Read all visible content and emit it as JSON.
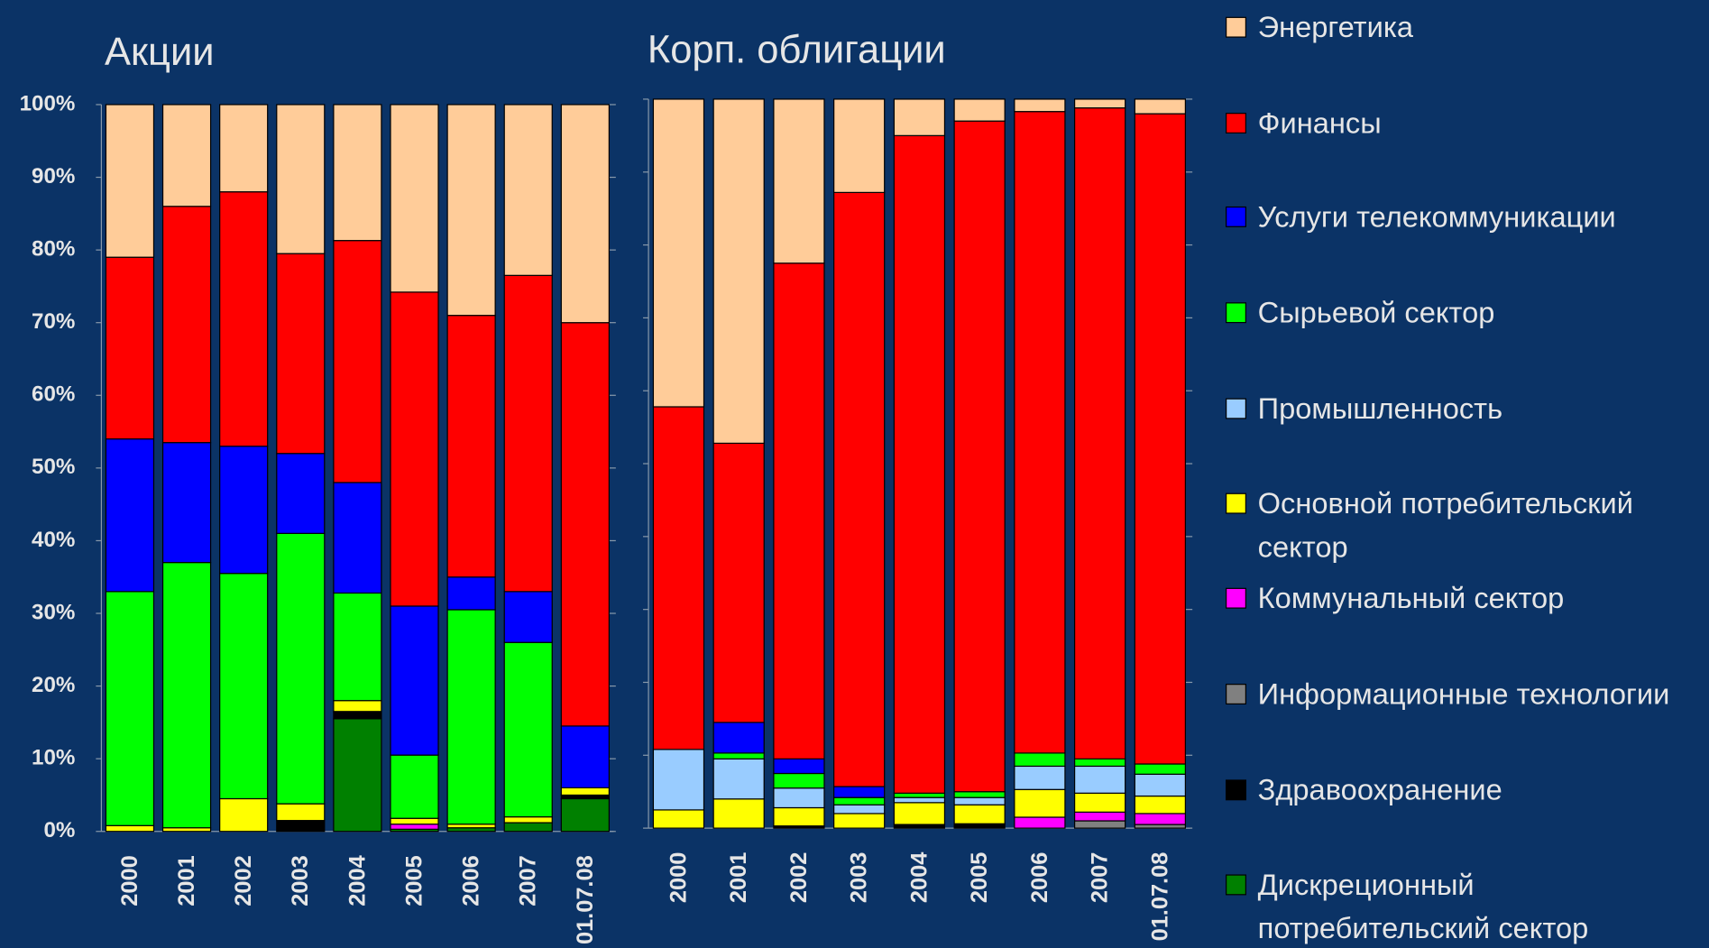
{
  "chart_data": [
    {
      "type": "stacked_bar",
      "title": "Акции",
      "categories": [
        "2000",
        "2001",
        "2002",
        "2003",
        "2004",
        "2005",
        "2006",
        "2007",
        "01.07.08"
      ],
      "ylim": [
        0,
        100
      ],
      "yticks": [
        {
          "value": 0,
          "label": "0%"
        },
        {
          "value": 10,
          "label": "10%"
        },
        {
          "value": 20,
          "label": "20%"
        },
        {
          "value": 30,
          "label": "30%"
        },
        {
          "value": 40,
          "label": "40%"
        },
        {
          "value": 50,
          "label": "50%"
        },
        {
          "value": 60,
          "label": "60%"
        },
        {
          "value": 70,
          "label": "70%"
        },
        {
          "value": 80,
          "label": "80%"
        },
        {
          "value": 90,
          "label": "90%"
        },
        {
          "value": 100,
          "label": "100%"
        }
      ],
      "series": [
        {
          "name": "Энергетика",
          "color": "#ffcc99",
          "values": [
            21,
            14,
            12,
            20.5,
            18.7,
            25.8,
            29,
            23.5,
            30
          ]
        },
        {
          "name": "Финансы",
          "color": "#ff0000",
          "values": [
            25,
            32.5,
            35,
            27.5,
            33.3,
            43.2,
            36,
            43.5,
            55.5
          ]
        },
        {
          "name": "Услуги телекоммуникации",
          "color": "#0000ff",
          "values": [
            21,
            16.5,
            17.5,
            11,
            15.2,
            20.5,
            4.5,
            7,
            8.5
          ]
        },
        {
          "name": "Сырьевой сектор",
          "color": "#00ff00",
          "values": [
            32.2,
            36.5,
            31,
            37.2,
            14.8,
            8.7,
            29.5,
            24,
            0
          ]
        },
        {
          "name": "Промышленность",
          "color": "#99ccff",
          "values": [
            0,
            0,
            0,
            0,
            0,
            0,
            0,
            0,
            0
          ]
        },
        {
          "name": "Основной потребительский сектор",
          "color": "#ffff00",
          "values": [
            0.8,
            0.5,
            4.5,
            2.3,
            1.5,
            0.8,
            0.5,
            0.8,
            1
          ]
        },
        {
          "name": "Коммунальный сектор",
          "color": "#ff00ff",
          "values": [
            0,
            0,
            0,
            0,
            0,
            0.7,
            0,
            0,
            0
          ]
        },
        {
          "name": "Информационные технологии",
          "color": "#808080",
          "values": [
            0,
            0,
            0,
            0,
            0,
            0,
            0,
            0,
            0
          ]
        },
        {
          "name": "Здравоохранение",
          "color": "#000000",
          "values": [
            0,
            0,
            0,
            1.5,
            1,
            0,
            0,
            0,
            0.5
          ]
        },
        {
          "name": "Дискреционный потребительский сектор",
          "color": "#008000",
          "values": [
            0,
            0,
            0,
            0,
            15.5,
            0.3,
            0.5,
            1.2,
            4.5
          ]
        }
      ]
    },
    {
      "type": "stacked_bar",
      "title": "Корп. облигации",
      "categories": [
        "2000",
        "2001",
        "2002",
        "2003",
        "2004",
        "2005",
        "2006",
        "2007",
        "01.07.08"
      ],
      "ylim": [
        0,
        100
      ],
      "yticks": [
        0,
        10,
        20,
        30,
        40,
        50,
        60,
        70,
        80,
        90,
        100
      ],
      "series": [
        {
          "values": [
            42.2,
            47.2,
            22.5,
            12.8,
            5,
            3,
            1.7,
            1.2,
            2
          ]
        },
        {
          "values": [
            47,
            38.3,
            68,
            81.5,
            90.2,
            92,
            88,
            89.3,
            89.2
          ]
        },
        {
          "values": [
            0,
            4.2,
            2,
            1.5,
            0,
            0,
            0,
            0,
            0
          ]
        },
        {
          "values": [
            0,
            0.8,
            2,
            1,
            0.6,
            0.8,
            1.8,
            1,
            1.4
          ]
        },
        {
          "values": [
            8.3,
            5.5,
            2.7,
            1.2,
            0.7,
            1,
            3.2,
            3.7,
            3
          ]
        },
        {
          "values": [
            2.5,
            4,
            2.5,
            2,
            3,
            2.6,
            3.8,
            2.6,
            2.4
          ]
        },
        {
          "values": [
            0,
            0,
            0,
            0,
            0,
            0,
            1.5,
            1.2,
            1.5
          ]
        },
        {
          "values": [
            0,
            0,
            0,
            0,
            0,
            0,
            0,
            1,
            0.5
          ]
        },
        {
          "values": [
            0,
            0,
            0.3,
            0,
            0.5,
            0.6,
            0,
            0,
            0
          ]
        },
        {
          "values": [
            0,
            0,
            0,
            0,
            0,
            0,
            0,
            0,
            0
          ]
        }
      ]
    }
  ]
}
